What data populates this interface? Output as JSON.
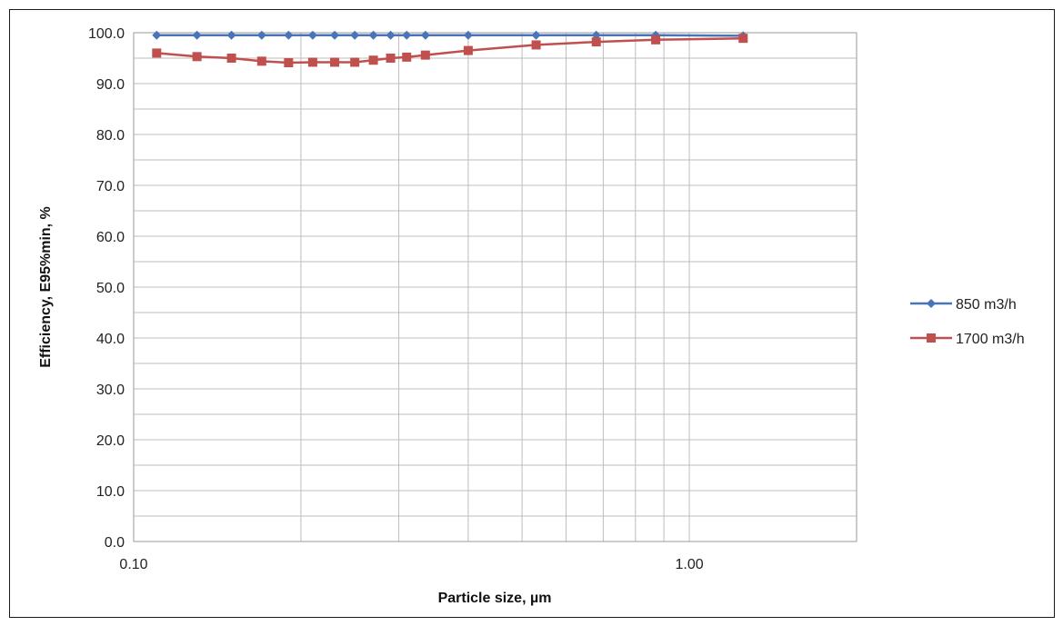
{
  "chart_data": {
    "type": "line",
    "title": "",
    "xlabel": "Particle size, µm",
    "ylabel": "Efficiency, E95%min, %",
    "x_scale": "log",
    "xlim": [
      0.1,
      2.0
    ],
    "ylim": [
      0,
      100
    ],
    "grid": true,
    "legend_position": "right",
    "x_tick_labels": [
      "0.10",
      "1.00"
    ],
    "y_tick_labels": [
      "0.0",
      "10.0",
      "20.0",
      "30.0",
      "40.0",
      "50.0",
      "60.0",
      "70.0",
      "80.0",
      "90.0",
      "100.0"
    ],
    "x": [
      0.11,
      0.13,
      0.15,
      0.17,
      0.19,
      0.21,
      0.23,
      0.25,
      0.27,
      0.29,
      0.31,
      0.335,
      0.4,
      0.53,
      0.68,
      0.87,
      1.25
    ],
    "series": [
      {
        "name": "850 m3/h",
        "color": "#4a74b8",
        "marker": "diamond",
        "values": [
          99.5,
          99.5,
          99.5,
          99.5,
          99.5,
          99.5,
          99.5,
          99.5,
          99.5,
          99.5,
          99.5,
          99.5,
          99.5,
          99.5,
          99.5,
          99.5,
          99.4
        ]
      },
      {
        "name": "1700 m3/h",
        "color": "#c0504d",
        "marker": "square",
        "values": [
          96.0,
          95.3,
          95.0,
          94.4,
          94.1,
          94.2,
          94.2,
          94.2,
          94.6,
          95.0,
          95.2,
          95.6,
          96.5,
          97.6,
          98.2,
          98.6,
          98.9
        ]
      }
    ]
  }
}
